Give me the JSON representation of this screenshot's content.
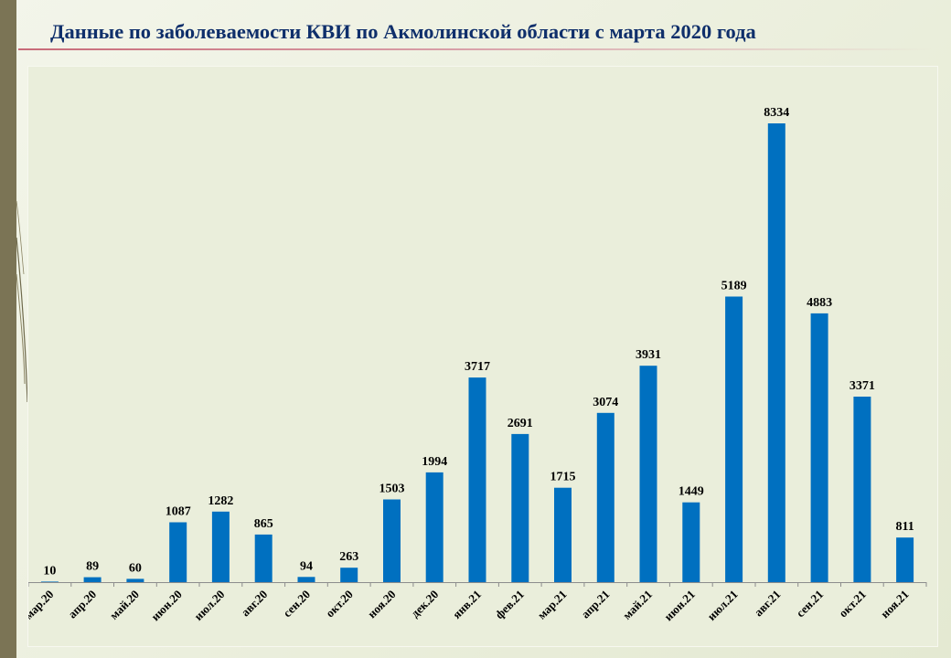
{
  "slide": {
    "title": "Данные по заболеваемости КВИ по Акмолинской области  с марта 2020 года"
  },
  "colors": {
    "bar": "#0070c0",
    "title": "#0f2f6b",
    "underline": "#c86a78",
    "left_band": "#7b7455",
    "background": "#eaeedb"
  },
  "chart_data": {
    "type": "bar",
    "title": "",
    "xlabel": "",
    "ylabel": "",
    "grid": false,
    "legend": "none",
    "ylim": [
      0,
      8600
    ],
    "categories": [
      "мар.20",
      "апр.20",
      "май.20",
      "июн.20",
      "июл.20",
      "авг.20",
      "сен.20",
      "окт.20",
      "ноя.20",
      "дек.20",
      "янв.21",
      "фев.21",
      "мар.21",
      "апр.21",
      "май.21",
      "июн.21",
      "июл.21",
      "авг.21",
      "сен.21",
      "окт.21",
      "ноя.21"
    ],
    "values": [
      10,
      89,
      60,
      1087,
      1282,
      865,
      94,
      263,
      1503,
      1994,
      3717,
      2691,
      1715,
      3074,
      3931,
      1449,
      5189,
      8334,
      4883,
      3371,
      811
    ]
  }
}
